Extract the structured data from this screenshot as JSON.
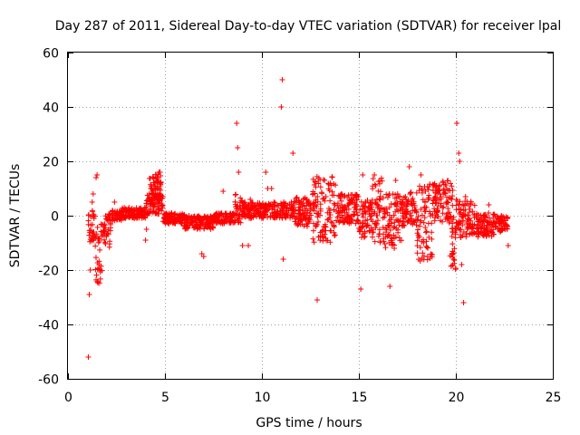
{
  "chart_data": {
    "type": "scatter",
    "title": "Day 287 of 2011, Sidereal Day-to-day VTEC variation (SDTVAR) for receiver lpal",
    "xlabel": "GPS time / hours",
    "ylabel": "SDTVAR / TECUs",
    "xlim": [
      0,
      25
    ],
    "ylim": [
      -60,
      60
    ],
    "xticks": [
      0,
      5,
      10,
      15,
      20,
      25
    ],
    "yticks": [
      -60,
      -40,
      -20,
      0,
      20,
      40,
      60
    ],
    "grid": true,
    "marker": "+",
    "color": "#ff0000",
    "series": [
      {
        "name": "SDTVAR",
        "bands": [
          {
            "x": [
              1.05,
              1.4
            ],
            "lo": -10,
            "hi": 2
          },
          {
            "x": [
              1.4,
              1.75
            ],
            "lo": -25,
            "hi": -3
          },
          {
            "x": [
              1.75,
              2.2
            ],
            "lo": -12,
            "hi": 1
          },
          {
            "x": [
              2.2,
              2.8
            ],
            "lo": -2,
            "hi": 2
          },
          {
            "x": [
              2.8,
              4.0
            ],
            "lo": -1,
            "hi": 3
          },
          {
            "x": [
              4.0,
              4.9
            ],
            "lo": 0,
            "hi": 8
          },
          {
            "x": [
              4.2,
              4.8
            ],
            "lo": 6,
            "hi": 16
          },
          {
            "x": [
              4.9,
              6.0
            ],
            "lo": -3,
            "hi": 1
          },
          {
            "x": [
              6.0,
              7.5
            ],
            "lo": -5,
            "hi": 0
          },
          {
            "x": [
              7.5,
              8.6
            ],
            "lo": -3,
            "hi": 1
          },
          {
            "x": [
              8.6,
              9.0
            ],
            "lo": -3,
            "hi": 8
          },
          {
            "x": [
              9.0,
              11.6
            ],
            "lo": -1,
            "hi": 5
          },
          {
            "x": [
              11.6,
              12.6
            ],
            "lo": -4,
            "hi": 7
          },
          {
            "x": [
              12.6,
              13.8
            ],
            "lo": -10,
            "hi": 15
          },
          {
            "x": [
              13.8,
              15.0
            ],
            "lo": -3,
            "hi": 8
          },
          {
            "x": [
              15.0,
              15.7
            ],
            "lo": -8,
            "hi": 6
          },
          {
            "x": [
              15.7,
              16.3
            ],
            "lo": -10,
            "hi": 15
          },
          {
            "x": [
              16.3,
              17.2
            ],
            "lo": -12,
            "hi": 8
          },
          {
            "x": [
              17.2,
              18.0
            ],
            "lo": -4,
            "hi": 9
          },
          {
            "x": [
              18.0,
              18.8
            ],
            "lo": -17,
            "hi": 12
          },
          {
            "x": [
              18.8,
              19.9
            ],
            "lo": -3,
            "hi": 13
          },
          {
            "x": [
              19.7,
              20.0
            ],
            "lo": -20,
            "hi": -3
          },
          {
            "x": [
              20.0,
              21.0
            ],
            "lo": -8,
            "hi": 6
          },
          {
            "x": [
              21.0,
              22.0
            ],
            "lo": -8,
            "hi": 1
          },
          {
            "x": [
              22.0,
              22.7
            ],
            "lo": -6,
            "hi": 0
          }
        ],
        "points": [
          [
            1.05,
            -52
          ],
          [
            1.1,
            -29
          ],
          [
            1.15,
            -20
          ],
          [
            1.25,
            5
          ],
          [
            1.3,
            8
          ],
          [
            1.45,
            14
          ],
          [
            1.5,
            15
          ],
          [
            2.4,
            5
          ],
          [
            4.0,
            -9
          ],
          [
            4.05,
            -5
          ],
          [
            4.2,
            8
          ],
          [
            4.7,
            16
          ],
          [
            4.75,
            16
          ],
          [
            6.9,
            -14
          ],
          [
            7.0,
            -15
          ],
          [
            8.0,
            9
          ],
          [
            8.7,
            34
          ],
          [
            8.75,
            25
          ],
          [
            8.8,
            16
          ],
          [
            9.0,
            -11
          ],
          [
            9.3,
            -11
          ],
          [
            9.4,
            6
          ],
          [
            10.2,
            16
          ],
          [
            10.3,
            10
          ],
          [
            10.5,
            10
          ],
          [
            11.0,
            40
          ],
          [
            11.05,
            50
          ],
          [
            11.1,
            -16
          ],
          [
            11.6,
            23
          ],
          [
            12.85,
            -31
          ],
          [
            13.3,
            7
          ],
          [
            14.1,
            8
          ],
          [
            14.5,
            6
          ],
          [
            15.1,
            -27
          ],
          [
            15.2,
            15
          ],
          [
            15.8,
            15
          ],
          [
            16.6,
            -26
          ],
          [
            16.9,
            13
          ],
          [
            17.0,
            8
          ],
          [
            17.4,
            7
          ],
          [
            17.6,
            18
          ],
          [
            18.2,
            15
          ],
          [
            20.05,
            34
          ],
          [
            20.15,
            23
          ],
          [
            20.2,
            20
          ],
          [
            20.3,
            -18
          ],
          [
            20.4,
            -32
          ],
          [
            20.5,
            7
          ],
          [
            21.4,
            -7
          ],
          [
            21.7,
            4
          ],
          [
            22.7,
            -11
          ]
        ]
      }
    ]
  }
}
